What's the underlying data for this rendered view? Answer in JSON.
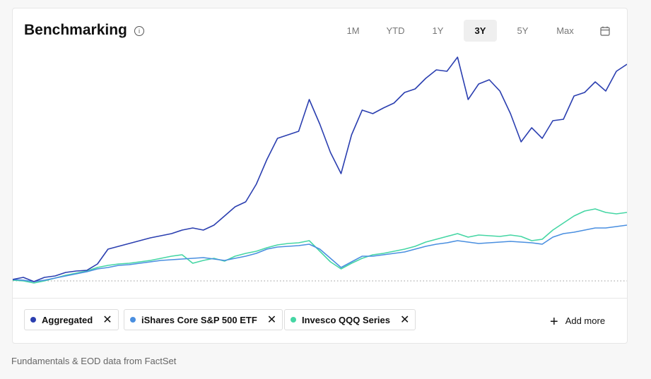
{
  "header": {
    "title": "Benchmarking",
    "ranges": [
      "1M",
      "YTD",
      "1Y",
      "3Y",
      "5Y",
      "Max"
    ],
    "selected": "3Y"
  },
  "chart_data": {
    "type": "line",
    "ylim": [
      -5,
      322
    ],
    "reference_line": 0,
    "series": [
      {
        "name": "Aggregated",
        "color": "#2b3fb0",
        "values": [
          2,
          5,
          -1,
          5,
          7,
          12,
          14,
          15,
          24,
          45,
          49,
          53,
          57,
          61,
          64,
          67,
          72,
          75,
          72,
          79,
          92,
          105,
          112,
          137,
          172,
          202,
          207,
          212,
          257,
          222,
          182,
          152,
          207,
          242,
          237,
          245,
          252,
          267,
          272,
          287,
          299,
          297,
          317,
          257,
          279,
          285,
          269,
          237,
          197,
          217,
          202,
          227,
          229,
          262,
          267,
          282,
          269,
          297,
          307
        ]
      },
      {
        "name": "iShares Core S&P 500 ETF",
        "color": "#4a8fe0",
        "values": [
          2,
          1,
          -1,
          1,
          4,
          7,
          10,
          13,
          17,
          19,
          22,
          23,
          25,
          27,
          29,
          30,
          31,
          32,
          33,
          31,
          29,
          32,
          35,
          39,
          45,
          48,
          49,
          50,
          52,
          45,
          32,
          19,
          27,
          35,
          35,
          37,
          39,
          41,
          45,
          49,
          52,
          54,
          57,
          55,
          53,
          54,
          55,
          56,
          55,
          54,
          52,
          62,
          67,
          69,
          72,
          75,
          75,
          77,
          79
        ]
      },
      {
        "name": "Invesco QQQ Series",
        "color": "#45d6a4",
        "values": [
          1,
          0,
          -3,
          0,
          4,
          8,
          11,
          14,
          19,
          22,
          24,
          25,
          27,
          29,
          32,
          35,
          37,
          25,
          29,
          32,
          28,
          35,
          39,
          42,
          47,
          51,
          53,
          54,
          57,
          42,
          27,
          17,
          25,
          32,
          37,
          39,
          42,
          45,
          49,
          55,
          59,
          63,
          67,
          62,
          65,
          64,
          63,
          65,
          63,
          57,
          59,
          72,
          82,
          92,
          99,
          102,
          97,
          95,
          97
        ]
      }
    ]
  },
  "add_more": "Add more",
  "footer": "Fundamentals & EOD data from FactSet"
}
